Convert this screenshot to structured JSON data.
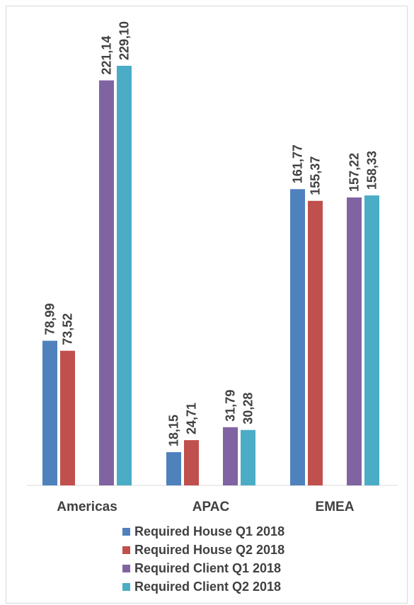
{
  "chart_data": {
    "type": "bar",
    "categories": [
      "Americas",
      "APAC",
      "EMEA"
    ],
    "series": [
      {
        "name": "Required House Q1 2018",
        "color": "#4f81bd",
        "values": [
          78.99,
          18.15,
          161.77
        ],
        "labels": [
          "78,99",
          "18,15",
          "161,77"
        ]
      },
      {
        "name": "Required House Q2 2018",
        "color": "#c0504d",
        "values": [
          73.52,
          24.71,
          155.37
        ],
        "labels": [
          "73,52",
          "24,71",
          "155,37"
        ]
      },
      {
        "name": "Required Client Q1 2018",
        "color": "#8064a2",
        "values": [
          221.14,
          31.79,
          157.22
        ],
        "labels": [
          "221,14",
          "31,79",
          "157,22"
        ]
      },
      {
        "name": "Required Client Q2 2018",
        "color": "#4bacc6",
        "values": [
          229.1,
          30.28,
          158.33
        ],
        "labels": [
          "229,10",
          "30,28",
          "158,33"
        ]
      }
    ],
    "data_labels": true,
    "data_label_orientation": "vertical",
    "legend": "bottom",
    "grid": false,
    "ylim": [
      0,
      250
    ]
  }
}
